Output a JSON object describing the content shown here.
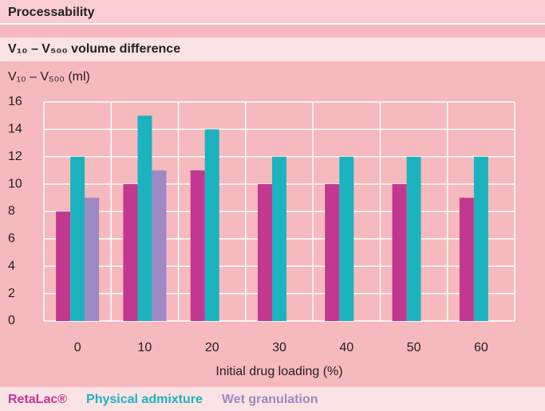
{
  "chart_data": {
    "type": "bar",
    "title": "Processability",
    "subtitle": "V₁₀ – V₅₀₀ volume difference",
    "y_label": "V₁₀ – V₅₀₀ (ml)",
    "x_label": "Initial drug loading (%)",
    "categories": [
      "0",
      "10",
      "20",
      "30",
      "40",
      "50",
      "60"
    ],
    "series": [
      {
        "name": "RetaLac®",
        "color": "#c2378f",
        "values": [
          8,
          10,
          11,
          10,
          10,
          10,
          9
        ]
      },
      {
        "name": "Physical admixture",
        "color": "#1bb3bd",
        "values": [
          12,
          15,
          14,
          12,
          12,
          12,
          12
        ]
      },
      {
        "name": "Wet granulation",
        "color": "#9d89c3",
        "values": [
          9,
          11,
          null,
          null,
          null,
          null,
          null
        ]
      }
    ],
    "ylim": [
      0,
      16
    ],
    "yticks": [
      0,
      2,
      4,
      6,
      8,
      10,
      12,
      14,
      16
    ],
    "grid": true
  }
}
